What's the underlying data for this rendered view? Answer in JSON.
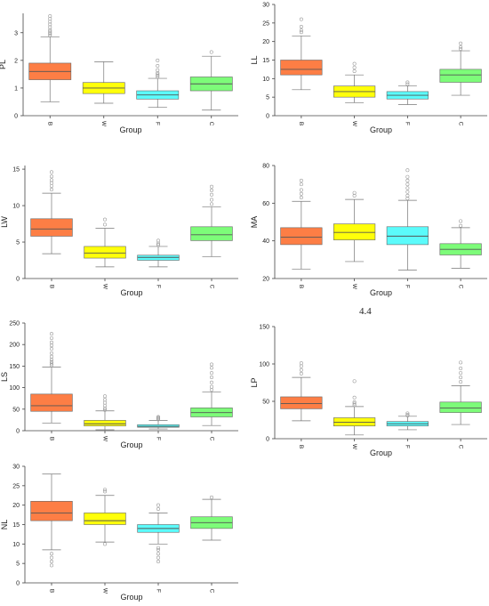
{
  "page": {
    "caption": "4.4"
  },
  "colors": {
    "B": "#fd7e45",
    "W": "#ffff0a",
    "F": "#5bfbfb",
    "C": "#7dfc79"
  },
  "chart_data": [
    {
      "type": "box",
      "ylabel": "PL",
      "xlabel": "Group",
      "categories": [
        "B",
        "W",
        "F",
        "C"
      ],
      "ylim": [
        0,
        3.7
      ],
      "yticks": [
        0,
        1,
        2,
        3
      ],
      "boxes": [
        {
          "group": "B",
          "whisker_low": 0.5,
          "q1": 1.3,
          "median": 1.6,
          "q3": 1.9,
          "whisker_high": 2.85,
          "outliers": [
            2.9,
            2.95,
            3.0,
            3.05,
            3.1,
            3.2,
            3.3,
            3.4,
            3.5,
            3.6
          ]
        },
        {
          "group": "W",
          "whisker_low": 0.45,
          "q1": 0.8,
          "median": 1.0,
          "q3": 1.2,
          "whisker_high": 1.95,
          "outliers": []
        },
        {
          "group": "F",
          "whisker_low": 0.3,
          "q1": 0.6,
          "median": 0.75,
          "q3": 0.9,
          "whisker_high": 1.35,
          "outliers": [
            1.4,
            1.45,
            1.5,
            1.55,
            1.65,
            1.8,
            2.0
          ]
        },
        {
          "group": "C",
          "whisker_low": 0.2,
          "q1": 0.9,
          "median": 1.15,
          "q3": 1.4,
          "whisker_high": 2.15,
          "outliers": [
            2.3
          ]
        }
      ]
    },
    {
      "type": "box",
      "ylabel": "LL",
      "xlabel": "Group",
      "categories": [
        "B",
        "W",
        "F",
        "C"
      ],
      "ylim": [
        0,
        30
      ],
      "yticks": [
        0,
        5,
        10,
        15,
        20,
        25,
        30
      ],
      "boxes": [
        {
          "group": "B",
          "whisker_low": 7,
          "q1": 11,
          "median": 12.5,
          "q3": 15,
          "whisker_high": 21.5,
          "outliers": [
            22.5,
            23,
            24,
            26
          ]
        },
        {
          "group": "W",
          "whisker_low": 3.5,
          "q1": 5,
          "median": 6.5,
          "q3": 8,
          "whisker_high": 11,
          "outliers": [
            12,
            13,
            14
          ]
        },
        {
          "group": "F",
          "whisker_low": 3,
          "q1": 4.5,
          "median": 5.5,
          "q3": 6.5,
          "whisker_high": 8,
          "outliers": [
            8.5,
            9
          ]
        },
        {
          "group": "C",
          "whisker_low": 5.5,
          "q1": 9,
          "median": 11,
          "q3": 12.5,
          "whisker_high": 17.5,
          "outliers": [
            18,
            18.5,
            19.5
          ]
        }
      ]
    },
    {
      "type": "box",
      "ylabel": "LW",
      "xlabel": "Group",
      "categories": [
        "B",
        "W",
        "F",
        "C"
      ],
      "ylim": [
        0,
        15.5
      ],
      "yticks": [
        0,
        5,
        10,
        15
      ],
      "boxes": [
        {
          "group": "B",
          "whisker_low": 3.4,
          "q1": 5.8,
          "median": 6.8,
          "q3": 8.2,
          "whisker_high": 11.7,
          "outliers": [
            12.2,
            12.7,
            13.1,
            13.5,
            14.0,
            14.6
          ]
        },
        {
          "group": "W",
          "whisker_low": 1.6,
          "q1": 2.8,
          "median": 3.5,
          "q3": 4.4,
          "whisker_high": 6.9,
          "outliers": [
            7.4,
            8.1
          ]
        },
        {
          "group": "F",
          "whisker_low": 1.6,
          "q1": 2.5,
          "median": 2.9,
          "q3": 3.2,
          "whisker_high": 4.4,
          "outliers": [
            4.6,
            4.8,
            5.2
          ]
        },
        {
          "group": "C",
          "whisker_low": 3.0,
          "q1": 5.2,
          "median": 6.0,
          "q3": 7.1,
          "whisker_high": 9.8,
          "outliers": [
            10.2,
            10.8,
            11.5,
            12.1,
            12.6
          ]
        }
      ]
    },
    {
      "type": "box",
      "ylabel": "MA",
      "xlabel": "Group",
      "categories": [
        "B",
        "W",
        "F",
        "C"
      ],
      "ylim": [
        20,
        80
      ],
      "yticks": [
        20,
        40,
        60,
        80
      ],
      "boxes": [
        {
          "group": "B",
          "whisker_low": 25,
          "q1": 38,
          "median": 42,
          "q3": 47,
          "whisker_high": 61,
          "outliers": [
            63,
            65,
            67,
            70,
            72
          ]
        },
        {
          "group": "W",
          "whisker_low": 29,
          "q1": 40.5,
          "median": 44.5,
          "q3": 49,
          "whisker_high": 62,
          "outliers": [
            64,
            65.5
          ]
        },
        {
          "group": "F",
          "whisker_low": 24.5,
          "q1": 38,
          "median": 42.5,
          "q3": 47.5,
          "whisker_high": 61.5,
          "outliers": [
            62.5,
            64,
            66,
            68,
            70,
            72,
            74,
            77.5
          ]
        },
        {
          "group": "C",
          "whisker_low": 25.5,
          "q1": 32.5,
          "median": 35.5,
          "q3": 38.5,
          "whisker_high": 47,
          "outliers": [
            48,
            50.5
          ]
        }
      ]
    },
    {
      "type": "box",
      "ylabel": "LS",
      "xlabel": "Group",
      "categories": [
        "B",
        "W",
        "F",
        "C"
      ],
      "ylim": [
        0,
        250
      ],
      "yticks": [
        0,
        50,
        100,
        150,
        200,
        250
      ],
      "boxes": [
        {
          "group": "B",
          "whisker_low": 18,
          "q1": 45,
          "median": 58,
          "q3": 85,
          "whisker_high": 148,
          "outliers": [
            152,
            156,
            160,
            165,
            172,
            180,
            190,
            198,
            205,
            215,
            225
          ]
        },
        {
          "group": "W",
          "whisker_low": 2,
          "q1": 11,
          "median": 16,
          "q3": 24,
          "whisker_high": 46,
          "outliers": [
            48,
            52,
            58,
            65,
            72,
            80
          ]
        },
        {
          "group": "F",
          "whisker_low": 4,
          "q1": 8,
          "median": 10,
          "q3": 14,
          "whisker_high": 24,
          "outliers": [
            26,
            28,
            30,
            32
          ]
        },
        {
          "group": "C",
          "whisker_low": 12,
          "q1": 32,
          "median": 42,
          "q3": 53,
          "whisker_high": 90,
          "outliers": [
            95,
            102,
            112,
            124,
            134,
            146,
            154
          ]
        }
      ]
    },
    {
      "type": "box",
      "ylabel": "LP",
      "xlabel": "Group",
      "categories": [
        "B",
        "W",
        "F",
        "C"
      ],
      "ylim": [
        0,
        150
      ],
      "yticks": [
        0,
        50,
        100,
        150
      ],
      "boxes": [
        {
          "group": "B",
          "whisker_low": 24,
          "q1": 40,
          "median": 47,
          "q3": 56,
          "whisker_high": 82,
          "outliers": [
            87,
            92,
            97,
            101
          ]
        },
        {
          "group": "W",
          "whisker_low": 5,
          "q1": 17,
          "median": 22,
          "q3": 28,
          "whisker_high": 43,
          "outliers": [
            45,
            47,
            49,
            55,
            77
          ]
        },
        {
          "group": "F",
          "whisker_low": 12,
          "q1": 17,
          "median": 20,
          "q3": 23,
          "whisker_high": 30,
          "outliers": [
            31,
            32,
            34
          ]
        },
        {
          "group": "C",
          "whisker_low": 19,
          "q1": 35,
          "median": 41,
          "q3": 49,
          "whisker_high": 71,
          "outliers": [
            76,
            82,
            88,
            94,
            102
          ]
        }
      ]
    },
    {
      "type": "box",
      "ylabel": "NL",
      "xlabel": "Group",
      "categories": [
        "B",
        "W",
        "F",
        "C"
      ],
      "ylim": [
        0,
        30
      ],
      "yticks": [
        0,
        5,
        10,
        15,
        20,
        25,
        30
      ],
      "boxes": [
        {
          "group": "B",
          "whisker_low": 8.5,
          "q1": 16,
          "median": 18,
          "q3": 21,
          "whisker_high": 28,
          "outliers": [
            4.5,
            5.5,
            6.5,
            7.5
          ]
        },
        {
          "group": "W",
          "whisker_low": 10.5,
          "q1": 15,
          "median": 16,
          "q3": 18,
          "whisker_high": 22.5,
          "outliers": [
            10,
            23.5,
            24
          ]
        },
        {
          "group": "F",
          "whisker_low": 10,
          "q1": 13,
          "median": 14,
          "q3": 15,
          "whisker_high": 18,
          "outliers": [
            5.5,
            6.5,
            7.5,
            8.5,
            9,
            19,
            20
          ]
        },
        {
          "group": "C",
          "whisker_low": 11,
          "q1": 14,
          "median": 15.5,
          "q3": 17,
          "whisker_high": 21.5,
          "outliers": [
            22
          ]
        }
      ]
    }
  ]
}
